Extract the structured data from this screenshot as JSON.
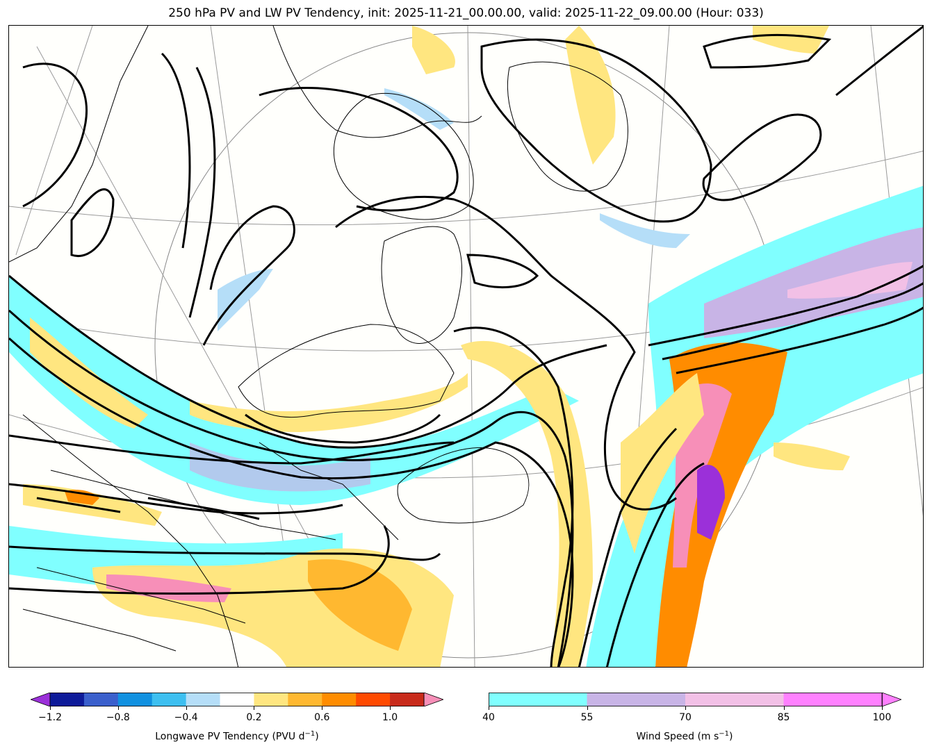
{
  "title": "250 hPa PV and LW PV Tendency, init: 2025-11-21_00.00.00, valid: 2025-11-22_09.00.00 (Hour: 033)",
  "colorbar_left": {
    "label": "Longwave PV Tendency (PVU d⁻¹)",
    "label_text": "Longwave PV Tendency (PVU d",
    "label_sup": "−1",
    "label_end": ")",
    "ticks": [
      "−1.2",
      "−0.8",
      "−0.4",
      "0.2",
      "0.6",
      "1.0"
    ],
    "tick_values": [
      -1.2,
      -0.8,
      -0.4,
      0.2,
      0.6,
      1.0
    ],
    "colors": [
      "#9b30d9",
      "#0d1a99",
      "#3a5fcc",
      "#1090e0",
      "#3dbff0",
      "#b5def8",
      "#ffffff",
      "#ffe680",
      "#ffb830",
      "#ff8c00",
      "#ff4a00",
      "#c82a1a",
      "#f78fb8"
    ],
    "extend": "both"
  },
  "colorbar_right": {
    "label_text": "Wind Speed (m s",
    "label_sup": "−1",
    "label_end": ")",
    "ticks": [
      "40",
      "55",
      "70",
      "85",
      "100"
    ],
    "tick_values": [
      40,
      55,
      70,
      85,
      100
    ],
    "colors": [
      "#80ffff",
      "#c8b4e6",
      "#f2c0e6",
      "#ff80ff"
    ],
    "extend": "max"
  }
}
